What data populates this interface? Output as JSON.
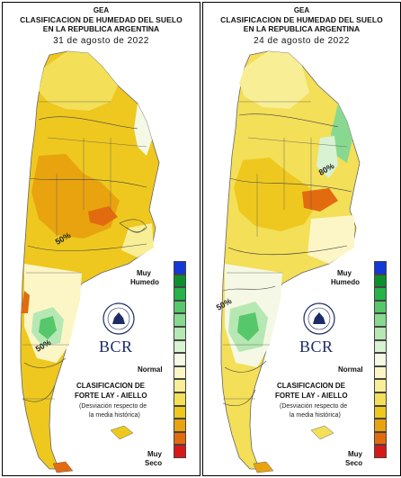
{
  "panels": [
    {
      "org": "GEA",
      "title_line1": "CLASIFICACION DE HUMEDAD DEL SUELO",
      "title_line2": "EN LA REPUBLICA ARGENTINA",
      "date": "31 de agosto de 2022",
      "contour_labels": [
        "50%",
        "50%"
      ]
    },
    {
      "org": "GEA",
      "title_line1": "CLASIFICACION DE HUMEDAD DEL SUELO",
      "title_line2": "EN LA REPUBLICA ARGENTINA",
      "date": "24 de agosto de 2022",
      "contour_labels": [
        "50%",
        "80%"
      ]
    }
  ],
  "legend": {
    "top_label_1": "Muy",
    "top_label_2": "Humedo",
    "middle_label": "Normal",
    "bottom_label_1": "Muy",
    "bottom_label_2": "Seco",
    "colors": [
      "#1437d9",
      "#0b8f2f",
      "#25b34a",
      "#56c86b",
      "#88d98f",
      "#b6e8b3",
      "#d8f2d2",
      "#f5f8e4",
      "#fcf6c6",
      "#f8ee96",
      "#f3df58",
      "#eec81f",
      "#e8a30f",
      "#e26b10",
      "#d71818"
    ]
  },
  "logo": {
    "text": "BCR"
  },
  "source": {
    "line1": "CLASIFICACION DE",
    "line2": "FORTE LAY - AIELLO",
    "note1": "(Desviación respecto de",
    "note2": "la media histórica)"
  },
  "colors": {
    "very_dry": "#d71818",
    "dry": "#eec81f",
    "normal": "#f5f8e4",
    "humid": "#56c86b",
    "very_humid": "#1437d9"
  }
}
